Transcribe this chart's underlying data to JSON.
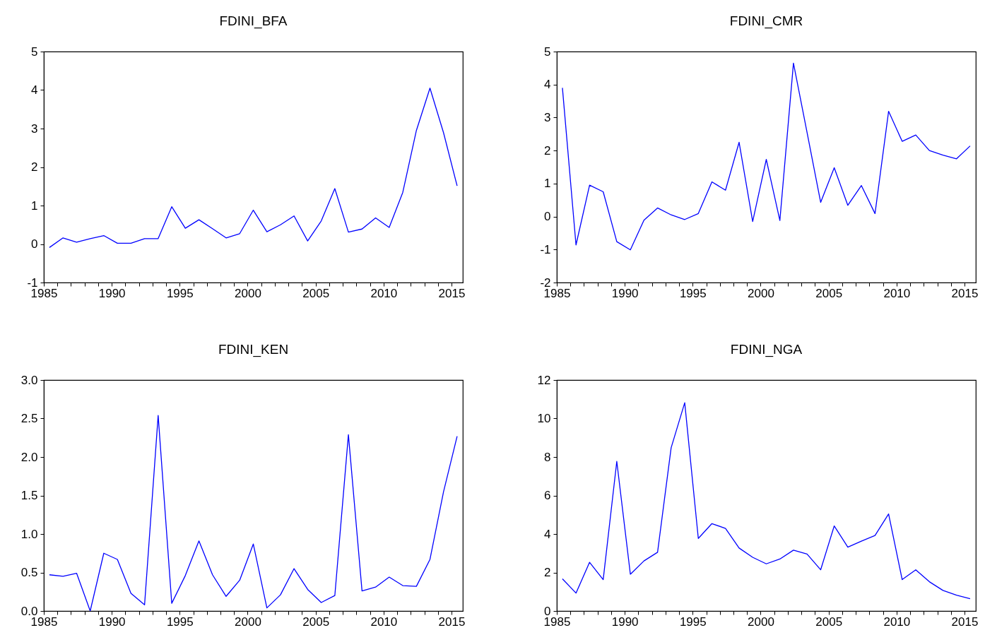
{
  "chart_data": [
    {
      "type": "line",
      "title": "FDINI_BFA",
      "x": [
        "1985-06",
        "1986-06",
        "1987-06",
        "1988-06",
        "1989-06",
        "1990-06",
        "1991-06",
        "1992-06",
        "1993-06",
        "1994-06",
        "1995-06",
        "1996-06",
        "1997-06",
        "1998-06",
        "1999-06",
        "2000-06",
        "2001-06",
        "2002-06",
        "2003-06",
        "2004-06",
        "2005-06",
        "2006-06",
        "2007-06",
        "2008-06",
        "2009-06",
        "2010-06",
        "2011-06",
        "2012-06",
        "2013-06",
        "2014-06",
        "2015-06"
      ],
      "xlim": [
        "1985-01",
        "2015-11"
      ],
      "xticks": [
        "1985",
        {
          "value": "1986",
          "label": null
        },
        {
          "value": "1987",
          "label": null
        },
        {
          "value": "1988",
          "label": null
        },
        {
          "value": "1989",
          "label": null
        },
        "1990",
        {
          "value": "1991",
          "label": null
        },
        {
          "value": "1992",
          "label": null
        },
        {
          "value": "1993",
          "label": null
        },
        {
          "value": "1994",
          "label": null
        },
        "1995",
        {
          "value": "1996",
          "label": null
        },
        {
          "value": "1997",
          "label": null
        },
        {
          "value": "1998",
          "label": null
        },
        {
          "value": "1999",
          "label": null
        },
        "2000",
        {
          "value": "2001",
          "label": null
        },
        {
          "value": "2002",
          "label": null
        },
        {
          "value": "2003",
          "label": null
        },
        {
          "value": "2004",
          "label": null
        },
        "2005",
        {
          "value": "2006",
          "label": null
        },
        {
          "value": "2007",
          "label": null
        },
        {
          "value": "2008",
          "label": null
        },
        {
          "value": "2009",
          "label": null
        },
        "2010",
        {
          "value": "2011",
          "label": null
        },
        {
          "value": "2012",
          "label": null
        },
        {
          "value": "2013",
          "label": null
        },
        {
          "value": "2014",
          "label": null
        },
        "2015"
      ],
      "ylim": [
        -1,
        5
      ],
      "yticks": [
        -1,
        0,
        1,
        2,
        3,
        4,
        5
      ],
      "grid": false,
      "series": [
        {
          "color": "#0000ff",
          "values": [
            -0.09,
            0.16,
            0.05,
            0.14,
            0.22,
            0.02,
            0.02,
            0.14,
            0.14,
            0.97,
            0.41,
            0.63,
            0.4,
            0.16,
            0.27,
            0.88,
            0.32,
            0.5,
            0.73,
            0.08,
            0.6,
            1.44,
            0.31,
            0.39,
            0.68,
            0.43,
            1.34,
            2.95,
            4.05,
            2.89,
            1.51
          ]
        }
      ]
    },
    {
      "type": "line",
      "title": "FDINI_CMR",
      "x": [
        "1985-06",
        "1986-06",
        "1987-06",
        "1988-06",
        "1989-06",
        "1990-06",
        "1991-06",
        "1992-06",
        "1993-06",
        "1994-06",
        "1995-06",
        "1996-06",
        "1997-06",
        "1998-06",
        "1999-06",
        "2000-06",
        "2001-06",
        "2002-06",
        "2003-06",
        "2004-06",
        "2005-06",
        "2006-06",
        "2007-06",
        "2008-06",
        "2009-06",
        "2010-06",
        "2011-06",
        "2012-06",
        "2013-06",
        "2014-06",
        "2015-06"
      ],
      "xlim": [
        "1985-01",
        "2015-11"
      ],
      "xticks": [
        "1985",
        {
          "value": "1986",
          "label": null
        },
        {
          "value": "1987",
          "label": null
        },
        {
          "value": "1988",
          "label": null
        },
        {
          "value": "1989",
          "label": null
        },
        "1990",
        {
          "value": "1991",
          "label": null
        },
        {
          "value": "1992",
          "label": null
        },
        {
          "value": "1993",
          "label": null
        },
        {
          "value": "1994",
          "label": null
        },
        "1995",
        {
          "value": "1996",
          "label": null
        },
        {
          "value": "1997",
          "label": null
        },
        {
          "value": "1998",
          "label": null
        },
        {
          "value": "1999",
          "label": null
        },
        "2000",
        {
          "value": "2001",
          "label": null
        },
        {
          "value": "2002",
          "label": null
        },
        {
          "value": "2003",
          "label": null
        },
        {
          "value": "2004",
          "label": null
        },
        "2005",
        {
          "value": "2006",
          "label": null
        },
        {
          "value": "2007",
          "label": null
        },
        {
          "value": "2008",
          "label": null
        },
        {
          "value": "2009",
          "label": null
        },
        "2010",
        {
          "value": "2011",
          "label": null
        },
        {
          "value": "2012",
          "label": null
        },
        {
          "value": "2013",
          "label": null
        },
        {
          "value": "2014",
          "label": null
        },
        "2015"
      ],
      "ylim": [
        -2,
        5
      ],
      "yticks": [
        -2,
        -1,
        0,
        1,
        2,
        3,
        4,
        5
      ],
      "grid": false,
      "series": [
        {
          "color": "#0000ff",
          "values": [
            3.9,
            -0.86,
            0.95,
            0.75,
            -0.76,
            -1.01,
            -0.11,
            0.26,
            0.05,
            -0.09,
            0.09,
            1.05,
            0.8,
            2.25,
            -0.15,
            1.73,
            -0.12,
            4.65,
            2.55,
            0.43,
            1.48,
            0.34,
            0.94,
            0.09,
            3.19,
            2.28,
            2.47,
            2.0,
            1.86,
            1.75,
            2.14
          ]
        }
      ]
    },
    {
      "type": "line",
      "title": "FDINI_KEN",
      "x": [
        "1985-06",
        "1986-06",
        "1987-06",
        "1988-06",
        "1989-06",
        "1990-06",
        "1991-06",
        "1992-06",
        "1993-06",
        "1994-06",
        "1995-06",
        "1996-06",
        "1997-06",
        "1998-06",
        "1999-06",
        "2000-06",
        "2001-06",
        "2002-06",
        "2003-06",
        "2004-06",
        "2005-06",
        "2006-06",
        "2007-06",
        "2008-06",
        "2009-06",
        "2010-06",
        "2011-06",
        "2012-06",
        "2013-06",
        "2014-06",
        "2015-06"
      ],
      "xlim": [
        "1985-01",
        "2015-11"
      ],
      "xticks": [
        "1985",
        {
          "value": "1986",
          "label": null
        },
        {
          "value": "1987",
          "label": null
        },
        {
          "value": "1988",
          "label": null
        },
        {
          "value": "1989",
          "label": null
        },
        "1990",
        {
          "value": "1991",
          "label": null
        },
        {
          "value": "1992",
          "label": null
        },
        {
          "value": "1993",
          "label": null
        },
        {
          "value": "1994",
          "label": null
        },
        "1995",
        {
          "value": "1996",
          "label": null
        },
        {
          "value": "1997",
          "label": null
        },
        {
          "value": "1998",
          "label": null
        },
        {
          "value": "1999",
          "label": null
        },
        "2000",
        {
          "value": "2001",
          "label": null
        },
        {
          "value": "2002",
          "label": null
        },
        {
          "value": "2003",
          "label": null
        },
        {
          "value": "2004",
          "label": null
        },
        "2005",
        {
          "value": "2006",
          "label": null
        },
        {
          "value": "2007",
          "label": null
        },
        {
          "value": "2008",
          "label": null
        },
        {
          "value": "2009",
          "label": null
        },
        "2010",
        {
          "value": "2011",
          "label": null
        },
        {
          "value": "2012",
          "label": null
        },
        {
          "value": "2013",
          "label": null
        },
        {
          "value": "2014",
          "label": null
        },
        "2015"
      ],
      "ylim": [
        0,
        3
      ],
      "yticks": [
        {
          "value": 0,
          "label": "0.0"
        },
        {
          "value": 0.5,
          "label": "0.5"
        },
        {
          "value": 1,
          "label": "1.0"
        },
        {
          "value": 1.5,
          "label": "1.5"
        },
        {
          "value": 2,
          "label": "2.0"
        },
        {
          "value": 2.5,
          "label": "2.5"
        },
        {
          "value": 3,
          "label": "3.0"
        }
      ],
      "grid": false,
      "series": [
        {
          "color": "#0000ff",
          "values": [
            0.47,
            0.45,
            0.49,
            0.0,
            0.75,
            0.67,
            0.23,
            0.08,
            2.54,
            0.1,
            0.46,
            0.91,
            0.47,
            0.19,
            0.4,
            0.87,
            0.04,
            0.21,
            0.55,
            0.28,
            0.11,
            0.2,
            2.29,
            0.26,
            0.31,
            0.44,
            0.33,
            0.32,
            0.67,
            1.55,
            2.27
          ]
        }
      ]
    },
    {
      "type": "line",
      "title": "FDINI_NGA",
      "x": [
        "1985-06",
        "1986-06",
        "1987-06",
        "1988-06",
        "1989-06",
        "1990-06",
        "1991-06",
        "1992-06",
        "1993-06",
        "1994-06",
        "1995-06",
        "1996-06",
        "1997-06",
        "1998-06",
        "1999-06",
        "2000-06",
        "2001-06",
        "2002-06",
        "2003-06",
        "2004-06",
        "2005-06",
        "2006-06",
        "2007-06",
        "2008-06",
        "2009-06",
        "2010-06",
        "2011-06",
        "2012-06",
        "2013-06",
        "2014-06",
        "2015-06"
      ],
      "xlim": [
        "1985-01",
        "2015-11"
      ],
      "xticks": [
        "1985",
        {
          "value": "1986",
          "label": null
        },
        {
          "value": "1987",
          "label": null
        },
        {
          "value": "1988",
          "label": null
        },
        {
          "value": "1989",
          "label": null
        },
        "1990",
        {
          "value": "1991",
          "label": null
        },
        {
          "value": "1992",
          "label": null
        },
        {
          "value": "1993",
          "label": null
        },
        {
          "value": "1994",
          "label": null
        },
        "1995",
        {
          "value": "1996",
          "label": null
        },
        {
          "value": "1997",
          "label": null
        },
        {
          "value": "1998",
          "label": null
        },
        {
          "value": "1999",
          "label": null
        },
        "2000",
        {
          "value": "2001",
          "label": null
        },
        {
          "value": "2002",
          "label": null
        },
        {
          "value": "2003",
          "label": null
        },
        {
          "value": "2004",
          "label": null
        },
        "2005",
        {
          "value": "2006",
          "label": null
        },
        {
          "value": "2007",
          "label": null
        },
        {
          "value": "2008",
          "label": null
        },
        {
          "value": "2009",
          "label": null
        },
        "2010",
        {
          "value": "2011",
          "label": null
        },
        {
          "value": "2012",
          "label": null
        },
        {
          "value": "2013",
          "label": null
        },
        {
          "value": "2014",
          "label": null
        },
        "2015"
      ],
      "ylim": [
        0,
        12
      ],
      "yticks": [
        0,
        2,
        4,
        6,
        8,
        10,
        12
      ],
      "grid": false,
      "series": [
        {
          "color": "#0000ff",
          "values": [
            1.67,
            0.93,
            2.53,
            1.63,
            7.77,
            1.91,
            2.6,
            3.05,
            8.48,
            10.82,
            3.77,
            4.54,
            4.29,
            3.27,
            2.79,
            2.45,
            2.7,
            3.16,
            2.96,
            2.14,
            4.42,
            3.32,
            3.63,
            3.92,
            5.04,
            1.63,
            2.14,
            1.52,
            1.07,
            0.82,
            0.64
          ]
        }
      ]
    }
  ]
}
